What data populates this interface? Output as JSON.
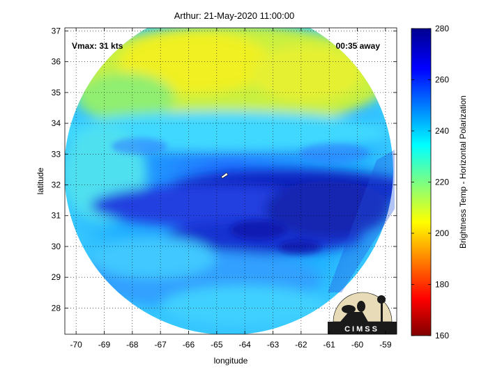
{
  "chart_data": {
    "type": "heatmap",
    "title": "Arthur: 21-May-2020 11:00:00",
    "xlabel": "longitude",
    "ylabel": "latitude",
    "xlim": [
      -70.4,
      -58.6
    ],
    "ylim": [
      27.15,
      37.1
    ],
    "xticks": [
      "-70",
      "-69",
      "-68",
      "-67",
      "-66",
      "-65",
      "-64",
      "-63",
      "-62",
      "-61",
      "-60",
      "-59"
    ],
    "yticks": [
      "28",
      "29",
      "30",
      "31",
      "32",
      "33",
      "34",
      "35",
      "36",
      "37"
    ],
    "grid": true,
    "annotations": {
      "vmax": "Vmax: 31 kts",
      "time_away": "00:35 away"
    },
    "colorbar": {
      "label": "Brightness Temp - Horizontal Polarization",
      "range": [
        160,
        280
      ],
      "ticks": [
        "160",
        "180",
        "200",
        "220",
        "240",
        "260",
        "280"
      ]
    },
    "logo_text": "CIMSS"
  },
  "colors": {
    "dark_blue": "#00008f",
    "blue": "#0000ff",
    "cyan": "#00ffff",
    "yellow": "#ffff00",
    "red": "#ff0000",
    "dark_red": "#800000"
  }
}
